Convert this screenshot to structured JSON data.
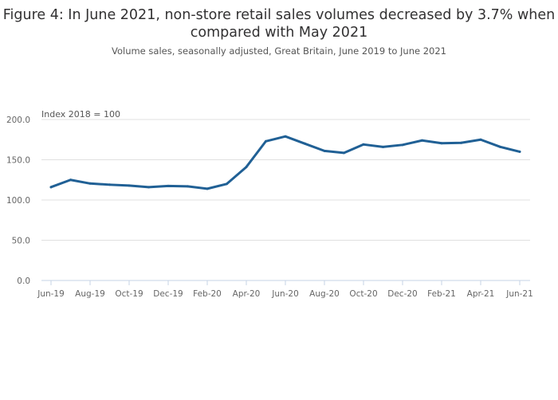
{
  "chart_data": {
    "type": "line",
    "title": "Figure 4: In June 2021, non-store retail sales volumes decreased by 3.7% when compared with May 2021",
    "subtitle": "Volume sales, seasonally adjusted, Great Britain, June 2019 to June 2021",
    "ylabel": "Index 2018 = 100",
    "xlabel": "",
    "ylim": [
      0,
      200
    ],
    "yticks": [
      "0.0",
      "50.0",
      "100.0",
      "150.0",
      "200.0"
    ],
    "ytick_values": [
      0,
      50,
      100,
      150,
      200
    ],
    "grid": true,
    "x": [
      "Jun-19",
      "Jul-19",
      "Aug-19",
      "Sep-19",
      "Oct-19",
      "Nov-19",
      "Dec-19",
      "Jan-20",
      "Feb-20",
      "Mar-20",
      "Apr-20",
      "May-20",
      "Jun-20",
      "Jul-20",
      "Aug-20",
      "Sep-20",
      "Oct-20",
      "Nov-20",
      "Dec-20",
      "Jan-21",
      "Feb-21",
      "Mar-21",
      "Apr-21",
      "May-21",
      "Jun-21"
    ],
    "xtick_labels": [
      "Jun-19",
      "Aug-19",
      "Oct-19",
      "Dec-19",
      "Feb-20",
      "Apr-20",
      "Jun-20",
      "Aug-20",
      "Oct-20",
      "Dec-20",
      "Feb-21",
      "Apr-21",
      "Jun-21"
    ],
    "series": [
      {
        "name": "Non-store retail",
        "color": "#206095",
        "values": [
          116,
          125,
          120.5,
          119,
          118,
          116,
          117.5,
          117,
          114,
          120,
          141,
          173,
          179,
          170,
          161,
          158.5,
          169,
          166,
          168.5,
          174,
          170.5,
          171,
          175,
          166,
          160
        ]
      }
    ]
  }
}
